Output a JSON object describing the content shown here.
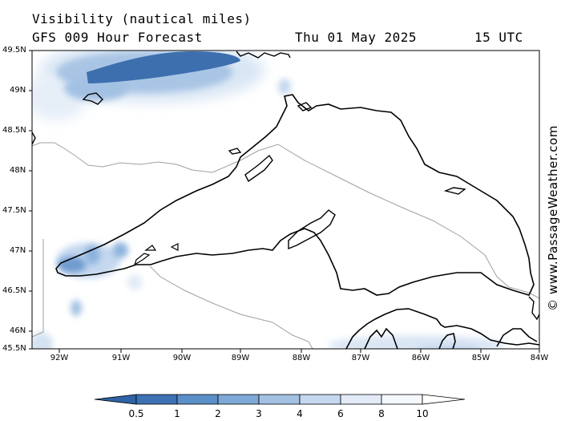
{
  "header": {
    "title": "Visibility (nautical miles)",
    "forecast": "GFS 009 Hour Forecast",
    "date": "Thu 01 May 2025",
    "time": "15 UTC"
  },
  "credit": "© www.PassageWeather.com",
  "axes": {
    "lat_labels": [
      "49.5N",
      "49N",
      "48.5N",
      "48N",
      "47.5N",
      "47N",
      "46.5N",
      "46N",
      "45.5N"
    ],
    "lon_labels": [
      "92W",
      "91W",
      "90W",
      "89W",
      "88W",
      "87W",
      "86W",
      "85W",
      "84W"
    ]
  },
  "colorbar": {
    "labels": [
      "0.5",
      "1",
      "2",
      "3",
      "4",
      "6",
      "8",
      "10"
    ],
    "colors": [
      "#2f63a6",
      "#3d72b4",
      "#5b8fc8",
      "#7ea8d6",
      "#a3c1e3",
      "#c5d8ef",
      "#e2ebf7",
      "#f5f8fc",
      "#ffffff"
    ]
  }
}
